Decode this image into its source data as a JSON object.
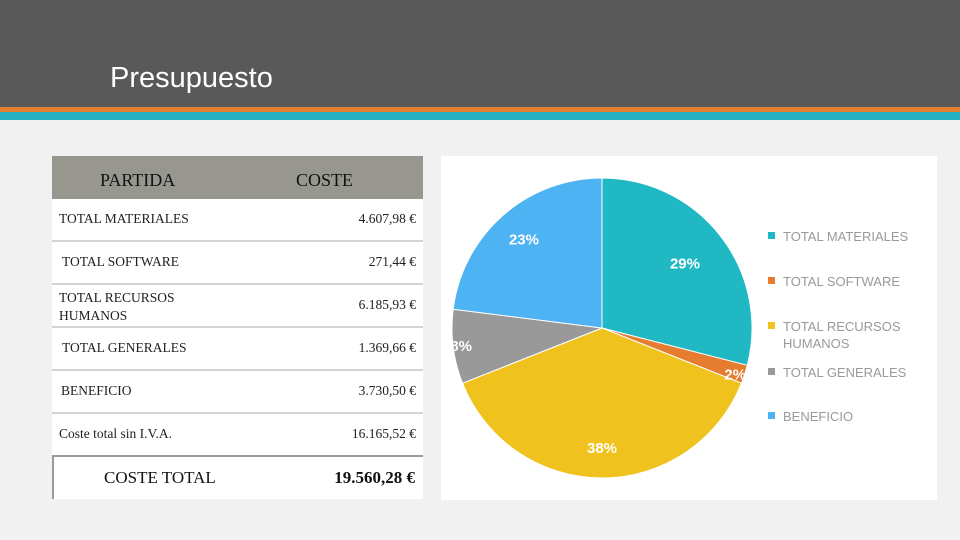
{
  "slide": {
    "title": "Presupuesto"
  },
  "table": {
    "header_partida": "PARTIDA",
    "header_coste": "COSTE",
    "rows": [
      {
        "label": "TOTAL MATERIALES",
        "value": "4.607,98 €"
      },
      {
        "label": "TOTAL SOFTWARE",
        "value": "271,44 €"
      },
      {
        "label": "TOTAL RECURSOS HUMANOS",
        "value": "6.185,93 €"
      },
      {
        "label": "TOTAL GENERALES",
        "value": "1.369,66 €"
      },
      {
        "label": "BENEFICIO",
        "value": "3.730,50 €"
      },
      {
        "label": "Coste total sin I.V.A.",
        "value": "16.165,52 €"
      }
    ],
    "total_label": "COSTE TOTAL",
    "total_value": "19.560,28 €"
  },
  "chart_data": {
    "type": "pie",
    "categories": [
      "TOTAL MATERIALES",
      "TOTAL SOFTWARE",
      "TOTAL RECURSOS HUMANOS",
      "TOTAL GENERALES",
      "BENEFICIO"
    ],
    "values": [
      29,
      2,
      38,
      8,
      23
    ],
    "labels": [
      "29%",
      "2%",
      "38%",
      "8%",
      "23%"
    ],
    "colors": [
      "#1fb8c3",
      "#e57c30",
      "#f0c21d",
      "#999999",
      "#4db3f2"
    ],
    "legend_position": "right",
    "start_angle_deg": 0,
    "direction": "clockwise"
  }
}
